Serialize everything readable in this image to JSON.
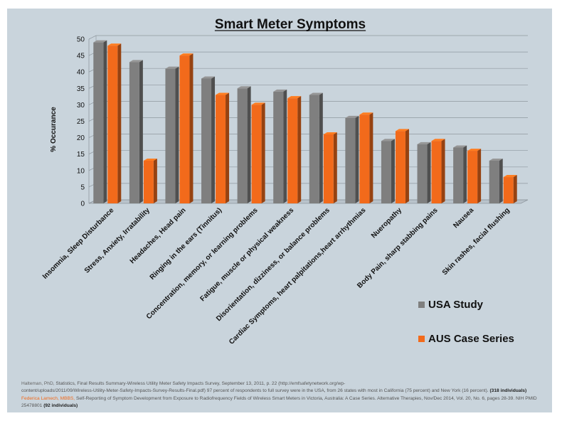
{
  "chart_data": {
    "type": "bar",
    "title": "Smart Meter Symptoms",
    "ylabel": "% Occurance",
    "xlabel": "",
    "ylim": [
      0,
      50
    ],
    "yticks": [
      0,
      5,
      10,
      15,
      20,
      25,
      30,
      35,
      40,
      45,
      50
    ],
    "grid": true,
    "legend_position": "bottom-right",
    "categories": [
      "Insomnia, Sleep Disturbance",
      "Stress, Anxiety, Irratability",
      "Headaches, Head pain",
      "Ringing in the ears (Tinnitus)",
      "Concentration, memory, or learning problems",
      "Fatigue, muscle or physical weakness",
      "Disorientation, dizziness, or balance problems",
      "Cardiac Symptoms, heart palpitations,heart arrhythmias",
      "Nueropathy",
      "Body Pain, sharp stabbing pains",
      "Nausea",
      "Skin rashes, facial flushing"
    ],
    "series": [
      {
        "name": "USA Study",
        "color": "#7f7f7f",
        "values": [
          49,
          43,
          41,
          38,
          35,
          34,
          33,
          26,
          19,
          18,
          17,
          13
        ]
      },
      {
        "name": "AUS Case Series",
        "color": "#f26a1b",
        "values": [
          48,
          13,
          45,
          33,
          30,
          32,
          21,
          27,
          22,
          19,
          16,
          8
        ]
      }
    ]
  },
  "references": {
    "ref1_author": "Halteman, PhD,",
    "ref1_text": " Statistics, Final Results Summary-Wireless Utility Meter Safety Impacts Survey, September 13, 2011, p. 22 (",
    "ref1_link1": "http://emfsafetynetwork.org/wp-",
    "ref1_link2": "content/uploads/2011/09/Wireless-Utility-Meter-Safety-Impacts-Survey-Results-Final.pdf",
    "ref1_text2": ") 97 percent of respondents to full survey were in the USA, from 26 states with most in California (75 percent) and New York (16 percent).",
    "ref1_count": "(318 individuals)",
    "ref2_author": "Federica Lamech, MBBS,",
    "ref2_text": " Self-Reporting of Symptom Development from Exposure to Radiofrequency Fields of Wireless Smart Meters in Victoria, Australia: A Case Series. Alternative Therapies, Nov/Dec 2014, Vol. 20, No. 6, pages 28-39. NIH PMID 25478801",
    "ref2_count": "(92 individuals)"
  }
}
